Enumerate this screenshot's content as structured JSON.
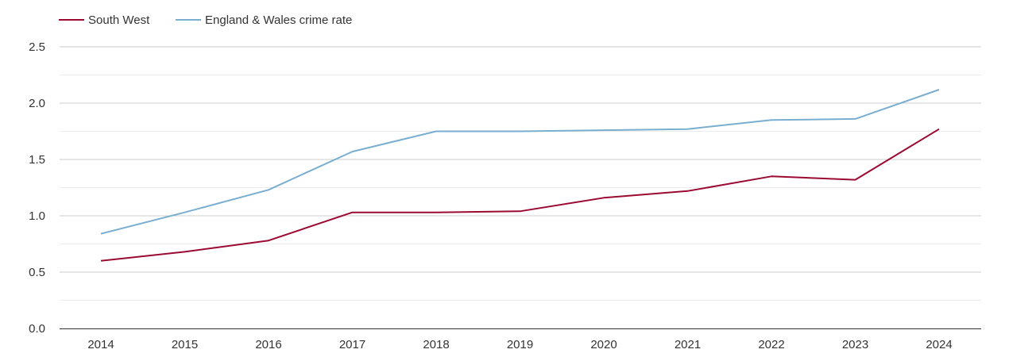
{
  "chart_data": {
    "type": "line",
    "title": "",
    "xlabel": "",
    "ylabel": "",
    "categories": [
      "2014",
      "2015",
      "2016",
      "2017",
      "2018",
      "2019",
      "2020",
      "2021",
      "2022",
      "2023",
      "2024"
    ],
    "ylim": [
      0,
      2.5
    ],
    "yticks": [
      "0.0",
      "0.5",
      "1.0",
      "1.5",
      "2.0",
      "2.5"
    ],
    "yticks_values": [
      0,
      0.5,
      1.0,
      1.5,
      2.0,
      2.5
    ],
    "grid": true,
    "legend_position": "top-left",
    "series": [
      {
        "name": "South West",
        "color": "#9b0a33",
        "values": [
          0.6,
          0.68,
          0.78,
          1.03,
          1.03,
          1.04,
          1.16,
          1.22,
          1.35,
          1.32,
          1.77
        ]
      },
      {
        "name": "England & Wales crime rate",
        "color": "#7aaed0",
        "values": [
          0.84,
          1.03,
          1.23,
          1.57,
          1.75,
          1.75,
          1.76,
          1.77,
          1.85,
          1.86,
          2.12
        ]
      }
    ]
  }
}
